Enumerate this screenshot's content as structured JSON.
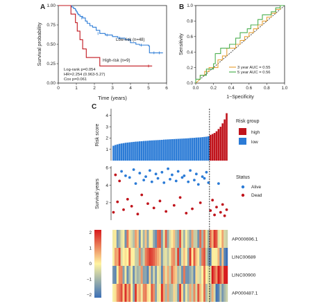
{
  "colors": {
    "low": "#2b7bd6",
    "high": "#c0141c",
    "alive": "#2b7bd6",
    "dead": "#c0141c",
    "auc3": "#e8a33a",
    "auc5": "#4caf50",
    "heat_low": "#3b6fb6",
    "heat_mid": "#fff3a0",
    "heat_high": "#d7191c"
  },
  "chart_data": [
    {
      "panel": "A",
      "type": "line",
      "xlabel": "Time (years)",
      "ylabel": "Survival probability",
      "xlim": [
        0,
        6
      ],
      "ylim": [
        0,
        1
      ],
      "xticks": [
        "0",
        "1",
        "2",
        "3",
        "4",
        "5",
        "6"
      ],
      "yticks": [
        "0.00",
        "0.25",
        "0.50",
        "0.75",
        "1.00"
      ],
      "series": [
        {
          "name": "Low-risk (n=48)",
          "steps": [
            [
              0,
              1
            ],
            [
              0.75,
              1
            ],
            [
              0.75,
              0.98
            ],
            [
              0.85,
              0.96
            ],
            [
              0.95,
              0.94
            ],
            [
              1.0,
              0.92
            ],
            [
              1.05,
              0.9
            ],
            [
              1.1,
              0.88
            ],
            [
              1.2,
              0.86
            ],
            [
              1.35,
              0.84
            ],
            [
              1.5,
              0.8
            ],
            [
              1.6,
              0.77
            ],
            [
              1.75,
              0.74
            ],
            [
              1.9,
              0.72
            ],
            [
              2.1,
              0.68
            ],
            [
              2.3,
              0.64
            ],
            [
              2.6,
              0.62
            ],
            [
              3.0,
              0.6
            ],
            [
              3.3,
              0.58
            ],
            [
              3.7,
              0.56
            ],
            [
              4.0,
              0.52
            ],
            [
              4.3,
              0.5
            ],
            [
              4.5,
              0.49
            ],
            [
              4.7,
              0.49
            ],
            [
              5.0,
              0.48
            ],
            [
              5.05,
              0.39
            ],
            [
              5.8,
              0.39
            ]
          ],
          "censor": [
            [
              1.3,
              0.84
            ],
            [
              2.2,
              0.64
            ],
            [
              2.7,
              0.62
            ],
            [
              3.4,
              0.58
            ],
            [
              3.9,
              0.56
            ],
            [
              4.6,
              0.49
            ],
            [
              5.3,
              0.39
            ],
            [
              5.6,
              0.39
            ]
          ]
        },
        {
          "name": "High-risk (n=9)",
          "steps": [
            [
              0,
              1
            ],
            [
              0.7,
              1
            ],
            [
              0.7,
              0.89
            ],
            [
              0.95,
              0.89
            ],
            [
              0.95,
              0.78
            ],
            [
              1.05,
              0.78
            ],
            [
              1.05,
              0.67
            ],
            [
              1.2,
              0.67
            ],
            [
              1.2,
              0.56
            ],
            [
              1.35,
              0.56
            ],
            [
              1.35,
              0.44
            ],
            [
              1.55,
              0.44
            ],
            [
              1.55,
              0.33
            ],
            [
              2.3,
              0.33
            ],
            [
              2.3,
              0.22
            ],
            [
              5.2,
              0.22
            ]
          ],
          "censor": [
            [
              5.0,
              0.22
            ]
          ]
        }
      ],
      "annotations": [
        "Log-rank p=0.054",
        "HR=2.254 (0.963-5.27)",
        "Cox p=0.061"
      ]
    },
    {
      "panel": "B",
      "type": "line",
      "xlabel": "1−Specificity",
      "ylabel": "Sensitivity",
      "xlim": [
        0,
        1
      ],
      "ylim": [
        0,
        1
      ],
      "xticks": [
        "0.0",
        "0.2",
        "0.4",
        "0.6",
        "0.8",
        "1.0"
      ],
      "yticks": [
        "0.0",
        "0.2",
        "0.4",
        "0.6",
        "0.8",
        "1.0"
      ],
      "series": [
        {
          "name": "3 year AUC = 0.55",
          "points": [
            [
              0,
              0
            ],
            [
              0.05,
              0.05
            ],
            [
              0.05,
              0.1
            ],
            [
              0.1,
              0.1
            ],
            [
              0.1,
              0.15
            ],
            [
              0.15,
              0.15
            ],
            [
              0.15,
              0.2
            ],
            [
              0.25,
              0.2
            ],
            [
              0.25,
              0.3
            ],
            [
              0.3,
              0.3
            ],
            [
              0.3,
              0.35
            ],
            [
              0.35,
              0.35
            ],
            [
              0.35,
              0.45
            ],
            [
              0.45,
              0.45
            ],
            [
              0.45,
              0.5
            ],
            [
              0.5,
              0.5
            ],
            [
              0.5,
              0.55
            ],
            [
              0.55,
              0.55
            ],
            [
              0.55,
              0.6
            ],
            [
              0.6,
              0.6
            ],
            [
              0.6,
              0.65
            ],
            [
              0.65,
              0.65
            ],
            [
              0.65,
              0.7
            ],
            [
              0.7,
              0.7
            ],
            [
              0.7,
              0.75
            ],
            [
              0.75,
              0.75
            ],
            [
              0.75,
              0.8
            ],
            [
              0.8,
              0.8
            ],
            [
              0.8,
              0.85
            ],
            [
              0.85,
              0.85
            ],
            [
              0.85,
              0.9
            ],
            [
              0.9,
              0.9
            ],
            [
              0.9,
              0.95
            ],
            [
              0.95,
              0.95
            ],
            [
              0.95,
              1
            ],
            [
              1,
              1
            ]
          ]
        },
        {
          "name": "5 year AUC = 0.56",
          "points": [
            [
              0,
              0
            ],
            [
              0,
              0.05
            ],
            [
              0.05,
              0.05
            ],
            [
              0.05,
              0.1
            ],
            [
              0.12,
              0.1
            ],
            [
              0.12,
              0.18
            ],
            [
              0.2,
              0.18
            ],
            [
              0.2,
              0.25
            ],
            [
              0.22,
              0.25
            ],
            [
              0.22,
              0.38
            ],
            [
              0.28,
              0.38
            ],
            [
              0.28,
              0.45
            ],
            [
              0.38,
              0.45
            ],
            [
              0.38,
              0.5
            ],
            [
              0.45,
              0.5
            ],
            [
              0.45,
              0.58
            ],
            [
              0.5,
              0.58
            ],
            [
              0.5,
              0.65
            ],
            [
              0.58,
              0.65
            ],
            [
              0.58,
              0.7
            ],
            [
              0.62,
              0.7
            ],
            [
              0.62,
              0.75
            ],
            [
              0.7,
              0.75
            ],
            [
              0.7,
              0.82
            ],
            [
              0.75,
              0.82
            ],
            [
              0.75,
              0.88
            ],
            [
              0.85,
              0.88
            ],
            [
              0.85,
              0.92
            ],
            [
              0.9,
              0.92
            ],
            [
              0.9,
              0.97
            ],
            [
              0.95,
              0.97
            ],
            [
              0.95,
              1
            ],
            [
              1,
              1
            ]
          ]
        }
      ]
    },
    {
      "panel": "C-score",
      "type": "bar",
      "ylabel": "Risk score",
      "ylim": [
        0,
        4.6
      ],
      "yticks": [
        "1",
        "2",
        "3",
        "4"
      ],
      "cutoff_index": 48,
      "values": [
        1.32,
        1.39,
        1.44,
        1.49,
        1.52,
        1.55,
        1.58,
        1.6,
        1.62,
        1.64,
        1.66,
        1.68,
        1.69,
        1.71,
        1.72,
        1.74,
        1.75,
        1.76,
        1.78,
        1.79,
        1.8,
        1.81,
        1.82,
        1.83,
        1.84,
        1.86,
        1.87,
        1.88,
        1.89,
        1.9,
        1.91,
        1.92,
        1.93,
        1.94,
        1.95,
        1.96,
        1.97,
        1.98,
        2.0,
        2.01,
        2.02,
        2.04,
        2.05,
        2.06,
        2.08,
        2.1,
        2.12,
        2.16,
        2.28,
        2.36,
        2.45,
        2.6,
        2.8,
        3.0,
        3.3,
        3.65,
        4.2
      ],
      "legend_title": "Risk group",
      "legend": [
        "high",
        "low"
      ]
    },
    {
      "panel": "C-status",
      "type": "scatter",
      "ylabel": "Survival years",
      "ylim": [
        0,
        6.2
      ],
      "yticks": [
        "2",
        "4",
        "6"
      ],
      "legend_title": "Status",
      "legend": [
        "Alive",
        "Dead"
      ],
      "points": [
        {
          "y": 0.9,
          "s": "Dead"
        },
        {
          "y": 5.2,
          "s": "Dead"
        },
        {
          "y": 2.1,
          "s": "Dead"
        },
        {
          "y": 4.5,
          "s": "Dead"
        },
        {
          "y": 5.6,
          "s": "Alive"
        },
        {
          "y": 1.2,
          "s": "Dead"
        },
        {
          "y": 5.1,
          "s": "Alive"
        },
        {
          "y": 2.4,
          "s": "Dead"
        },
        {
          "y": 4.9,
          "s": "Alive"
        },
        {
          "y": 1.6,
          "s": "Dead"
        },
        {
          "y": 5.8,
          "s": "Alive"
        },
        {
          "y": 4.2,
          "s": "Alive"
        },
        {
          "y": 0.7,
          "s": "Dead"
        },
        {
          "y": 5.4,
          "s": "Alive"
        },
        {
          "y": 2.9,
          "s": "Dead"
        },
        {
          "y": 4.6,
          "s": "Alive"
        },
        {
          "y": 5.0,
          "s": "Alive"
        },
        {
          "y": 1.9,
          "s": "Dead"
        },
        {
          "y": 5.7,
          "s": "Alive"
        },
        {
          "y": 4.4,
          "s": "Alive"
        },
        {
          "y": 1.4,
          "s": "Dead"
        },
        {
          "y": 5.3,
          "s": "Alive"
        },
        {
          "y": 4.8,
          "s": "Alive"
        },
        {
          "y": 2.2,
          "s": "Dead"
        },
        {
          "y": 5.5,
          "s": "Alive"
        },
        {
          "y": 4.3,
          "s": "Alive"
        },
        {
          "y": 1.0,
          "s": "Dead"
        },
        {
          "y": 5.9,
          "s": "Alive"
        },
        {
          "y": 4.7,
          "s": "Alive"
        },
        {
          "y": 5.2,
          "s": "Alive"
        },
        {
          "y": 1.7,
          "s": "Dead"
        },
        {
          "y": 4.5,
          "s": "Alive"
        },
        {
          "y": 5.6,
          "s": "Alive"
        },
        {
          "y": 2.6,
          "s": "Dead"
        },
        {
          "y": 4.9,
          "s": "Alive"
        },
        {
          "y": 5.1,
          "s": "Alive"
        },
        {
          "y": 0.8,
          "s": "Dead"
        },
        {
          "y": 4.4,
          "s": "Alive"
        },
        {
          "y": 5.7,
          "s": "Alive"
        },
        {
          "y": 1.3,
          "s": "Dead"
        },
        {
          "y": 4.6,
          "s": "Alive"
        },
        {
          "y": 5.3,
          "s": "Alive"
        },
        {
          "y": 4.1,
          "s": "Alive"
        },
        {
          "y": 2.0,
          "s": "Dead"
        },
        {
          "y": 5.0,
          "s": "Alive"
        },
        {
          "y": 4.8,
          "s": "Alive"
        },
        {
          "y": 5.5,
          "s": "Alive"
        },
        {
          "y": 4.3,
          "s": "Alive"
        },
        {
          "y": 1.1,
          "s": "Dead"
        },
        {
          "y": 2.3,
          "s": "Dead"
        },
        {
          "y": 0.6,
          "s": "Dead"
        },
        {
          "y": 1.5,
          "s": "Dead"
        },
        {
          "y": 4.2,
          "s": "Alive"
        },
        {
          "y": 0.9,
          "s": "Dead"
        },
        {
          "y": 1.8,
          "s": "Dead"
        },
        {
          "y": 0.5,
          "s": "Dead"
        },
        {
          "y": 1.2,
          "s": "Dead"
        }
      ]
    },
    {
      "panel": "C-heatmap",
      "type": "heatmap",
      "genes": [
        "AP000696.1",
        "LINC00689",
        "LINC00900",
        "AP000487.1"
      ],
      "scale_ticks": [
        "2",
        "1",
        "0",
        "−1",
        "−2"
      ],
      "vmin": -2,
      "vmax": 2
    }
  ],
  "panels": {
    "a": "A",
    "b": "B",
    "c": "C"
  }
}
